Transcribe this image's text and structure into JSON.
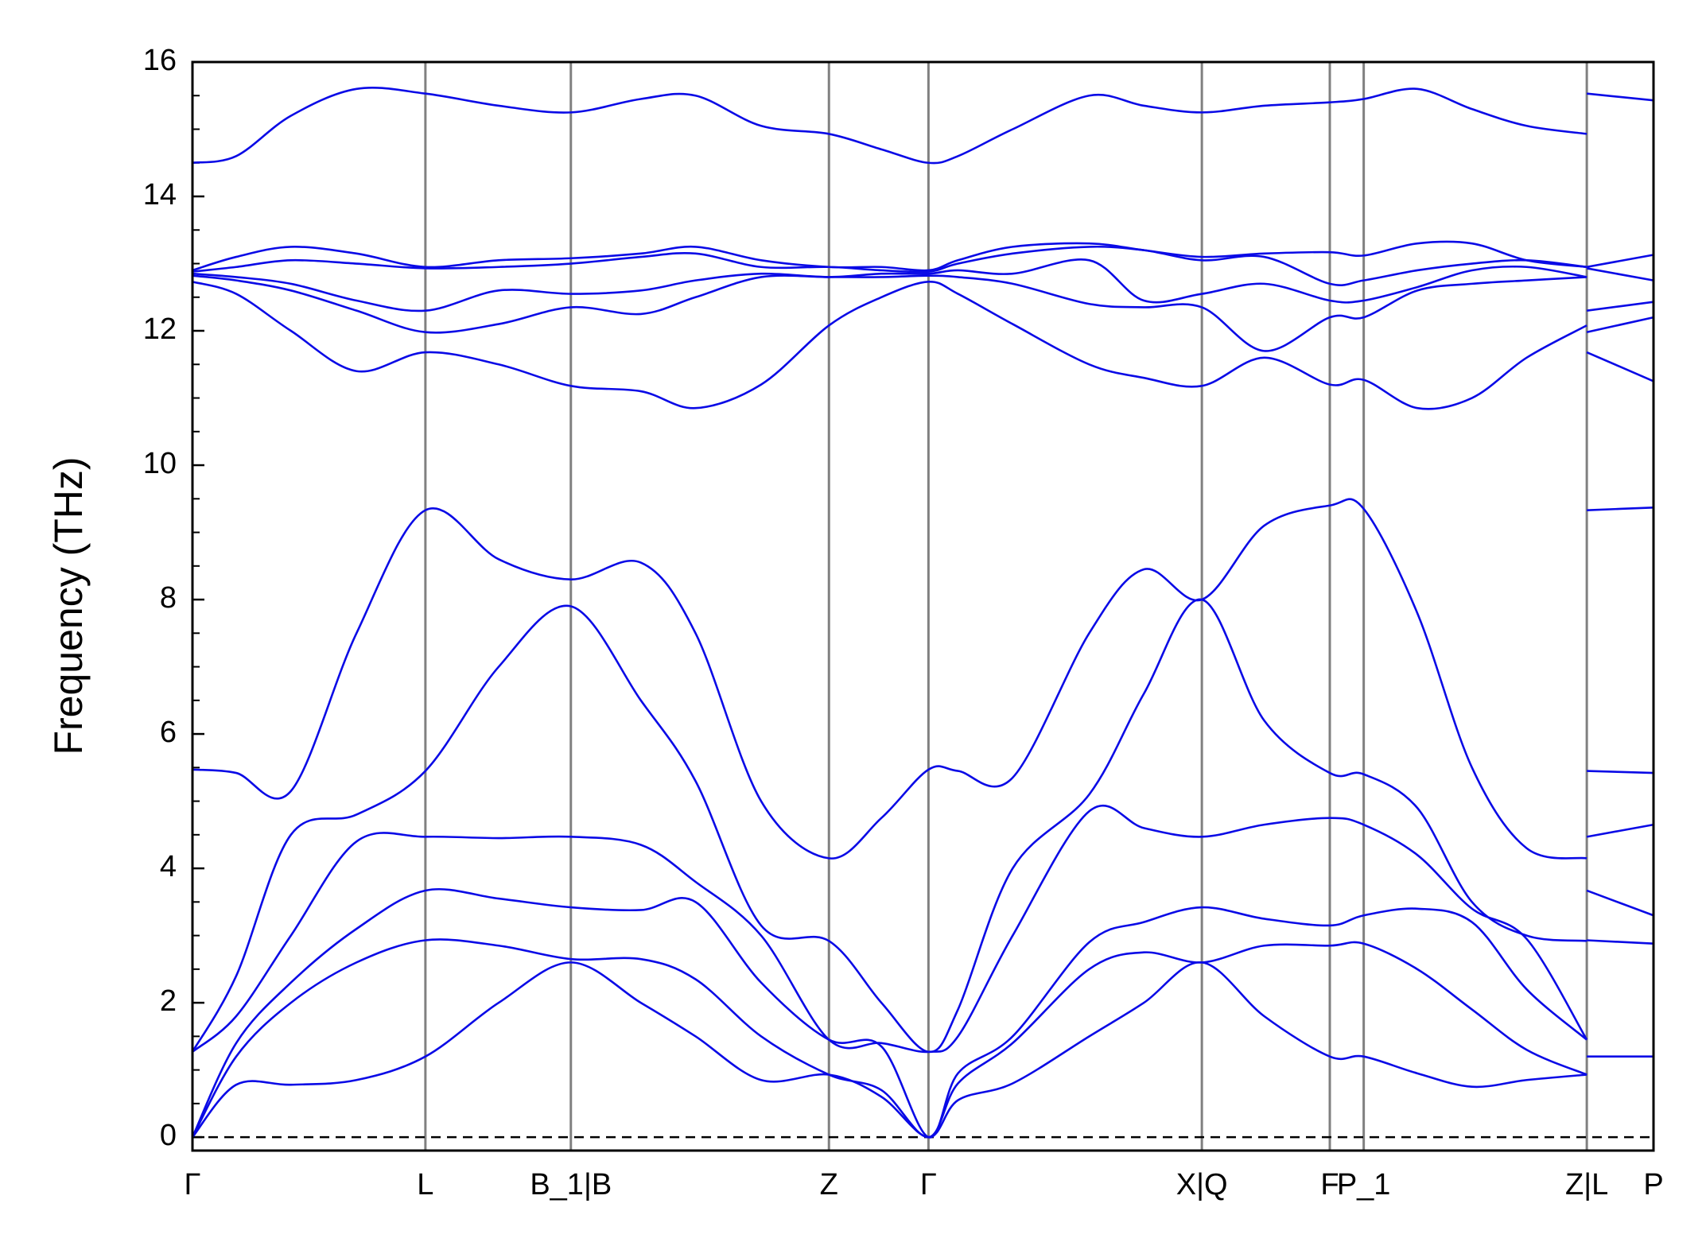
{
  "chart_data": {
    "type": "line",
    "ylabel": "Frequency (THz)",
    "color": "#0a0ae6",
    "ylim": [
      -0.2,
      16
    ],
    "yticks": [
      0,
      2,
      4,
      6,
      8,
      10,
      12,
      14,
      16
    ],
    "yminorticks": [
      0.5,
      1,
      1.5,
      2.5,
      3,
      3.5,
      4.5,
      5,
      5.5,
      6.5,
      7,
      7.5,
      8.5,
      9,
      9.5,
      10.5,
      11,
      11.5,
      12.5,
      13,
      13.5,
      14.5,
      15,
      15.5
    ],
    "hline": 0,
    "xlim": [
      0,
      1.336
    ],
    "xticks": [
      {
        "value": 0,
        "label": "Γ"
      },
      {
        "value": 0.213,
        "label": "L"
      },
      {
        "value": 0.346,
        "label": "B_1|B"
      },
      {
        "value": 0.582,
        "label": "Z"
      },
      {
        "value": 0.673,
        "label": "Γ"
      },
      {
        "value": 0.923,
        "label": "X|Q"
      },
      {
        "value": 1.04,
        "label": "F"
      },
      {
        "value": 1.071,
        "label": "P_1"
      },
      {
        "value": 1.275,
        "label": "Z|L"
      },
      {
        "value": 1.336,
        "label": "P"
      }
    ],
    "x": [
      0,
      0.04,
      0.09,
      0.15,
      0.213,
      0.28,
      0.346,
      0.41,
      0.46,
      0.52,
      0.582,
      0.63,
      0.673,
      0.7,
      0.75,
      0.82,
      0.87,
      0.923,
      0.98,
      1.04,
      1.071,
      1.12,
      1.17,
      1.22,
      1.275,
      1.275,
      1.275,
      1.336
    ],
    "series": [
      {
        "values": [
          0,
          0.78,
          0.78,
          0.85,
          1.2,
          2.0,
          2.6,
          2.0,
          1.5,
          0.85,
          0.93,
          0.6,
          0,
          0.55,
          0.8,
          1.5,
          2.0,
          2.6,
          1.8,
          1.2,
          1.2,
          0.95,
          0.75,
          0.85,
          0.93,
          null,
          1.2,
          1.2
        ]
      },
      {
        "values": [
          0,
          1.2,
          2.0,
          2.6,
          2.93,
          2.85,
          2.65,
          2.65,
          2.35,
          1.5,
          0.93,
          0.7,
          0,
          0.8,
          1.4,
          2.5,
          2.75,
          2.6,
          2.85,
          2.85,
          2.88,
          2.5,
          1.9,
          1.3,
          0.93,
          null,
          2.93,
          2.88
        ]
      },
      {
        "values": [
          0,
          1.4,
          2.3,
          3.1,
          3.67,
          3.55,
          3.42,
          3.38,
          3.5,
          2.3,
          1.45,
          1.35,
          0,
          0.95,
          1.5,
          2.9,
          3.2,
          3.42,
          3.25,
          3.15,
          3.3,
          3.4,
          3.2,
          2.2,
          1.45,
          null,
          3.67,
          3.3
        ]
      },
      {
        "values": [
          1.27,
          1.8,
          3.0,
          4.4,
          4.47,
          4.45,
          4.47,
          4.35,
          3.8,
          3.0,
          1.45,
          1.4,
          1.27,
          1.5,
          3.0,
          4.85,
          4.6,
          4.47,
          4.65,
          4.75,
          4.65,
          4.2,
          3.4,
          2.95,
          1.45,
          null,
          4.47,
          4.65
        ]
      },
      {
        "values": [
          1.27,
          2.4,
          4.5,
          4.8,
          5.45,
          7.0,
          7.9,
          6.5,
          5.3,
          3.15,
          2.92,
          2.0,
          1.27,
          1.9,
          4.0,
          5.1,
          6.6,
          8.0,
          6.2,
          5.42,
          5.4,
          4.9,
          3.5,
          3.0,
          2.92,
          null,
          5.45,
          5.42
        ]
      },
      {
        "values": [
          5.47,
          5.42,
          5.15,
          7.5,
          9.33,
          8.6,
          8.3,
          8.55,
          7.5,
          5.0,
          4.15,
          4.75,
          5.47,
          5.45,
          5.35,
          7.5,
          8.45,
          8.0,
          9.1,
          9.4,
          9.35,
          7.8,
          5.5,
          4.3,
          4.15,
          null,
          9.33,
          9.37
        ]
      },
      {
        "values": [
          12.73,
          12.55,
          12.0,
          11.4,
          11.68,
          11.5,
          11.18,
          11.1,
          10.85,
          11.2,
          12.08,
          12.5,
          12.73,
          12.55,
          12.1,
          11.5,
          11.3,
          11.18,
          11.6,
          11.2,
          11.27,
          10.85,
          11.0,
          11.6,
          12.08,
          null,
          11.68,
          11.25
        ]
      },
      {
        "values": [
          12.82,
          12.75,
          12.6,
          12.3,
          11.98,
          12.1,
          12.35,
          12.25,
          12.5,
          12.8,
          12.8,
          12.8,
          12.82,
          12.8,
          12.7,
          12.4,
          12.35,
          12.35,
          11.7,
          12.2,
          12.2,
          12.6,
          12.7,
          12.75,
          12.8,
          null,
          11.98,
          12.2
        ]
      },
      {
        "values": [
          12.85,
          12.8,
          12.7,
          12.45,
          12.3,
          12.6,
          12.55,
          12.6,
          12.75,
          12.85,
          12.8,
          12.85,
          12.85,
          12.9,
          12.85,
          13.05,
          12.45,
          12.55,
          12.7,
          12.45,
          12.45,
          12.65,
          12.9,
          12.95,
          12.8,
          null,
          12.3,
          12.43
        ]
      },
      {
        "values": [
          12.88,
          12.95,
          13.05,
          13.0,
          12.93,
          12.95,
          13.0,
          13.1,
          13.15,
          12.95,
          12.95,
          12.9,
          12.88,
          13.0,
          13.15,
          13.25,
          13.2,
          13.05,
          13.1,
          12.7,
          12.75,
          12.9,
          13.0,
          13.05,
          12.95,
          null,
          12.93,
          12.75
        ]
      },
      {
        "values": [
          12.9,
          13.1,
          13.25,
          13.15,
          12.95,
          13.05,
          13.08,
          13.15,
          13.25,
          13.05,
          12.95,
          12.95,
          12.9,
          13.05,
          13.25,
          13.3,
          13.2,
          13.1,
          13.15,
          13.17,
          13.12,
          13.3,
          13.3,
          13.05,
          12.95,
          null,
          12.95,
          13.13
        ]
      },
      {
        "values": [
          14.5,
          14.6,
          15.2,
          15.6,
          15.53,
          15.35,
          15.25,
          15.45,
          15.5,
          15.05,
          14.93,
          14.7,
          14.5,
          14.6,
          15.0,
          15.5,
          15.35,
          15.25,
          15.35,
          15.4,
          15.45,
          15.6,
          15.3,
          15.05,
          14.93,
          null,
          15.53,
          15.43
        ]
      }
    ]
  }
}
